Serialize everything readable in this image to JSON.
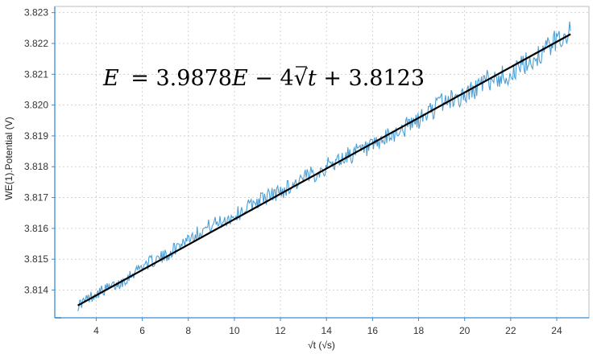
{
  "chart_data": {
    "type": "line",
    "xlabel": "√t (√s)",
    "ylabel": "WE(1).Potential (V)",
    "xlim": [
      2.2,
      25.4
    ],
    "ylim": [
      3.8131,
      3.8232
    ],
    "x_ticks": [
      4,
      6,
      8,
      10,
      12,
      14,
      16,
      18,
      20,
      22,
      24
    ],
    "x_tick_labels": [
      "4",
      "6",
      "8",
      "10",
      "12",
      "14",
      "16",
      "18",
      "20",
      "22",
      "24"
    ],
    "y_ticks": [
      3.814,
      3.815,
      3.816,
      3.817,
      3.818,
      3.819,
      3.82,
      3.821,
      3.822,
      3.823
    ],
    "y_tick_labels": [
      "3.814",
      "3.815",
      "3.816",
      "3.817",
      "3.818",
      "3.819",
      "3.820",
      "3.821",
      "3.822",
      "3.823"
    ],
    "grid": true,
    "annotation": {
      "E": "E",
      "eq1": " = 3.9878",
      "E2": "E",
      "mid": " − 4",
      "sqrt": "√",
      "t": "t",
      "tail": " + 3.8123"
    },
    "series": [
      {
        "role": "measured",
        "color": "#4c9fd6",
        "x": [
          3.2,
          4.0,
          5.0,
          6.0,
          7.0,
          8.0,
          9.0,
          10.0,
          11.0,
          12.0,
          13.0,
          14.0,
          15.0,
          16.0,
          17.0,
          18.0,
          19.0,
          20.0,
          21.0,
          22.0,
          23.0,
          24.0,
          24.6
        ],
        "y": [
          3.8135,
          3.8139,
          3.8142,
          3.8148,
          3.8151,
          3.8157,
          3.8161,
          3.8164,
          3.8169,
          3.8172,
          3.8176,
          3.818,
          3.8184,
          3.8186,
          3.8191,
          3.8195,
          3.8201,
          3.8203,
          3.8208,
          3.821,
          3.8215,
          3.8221,
          3.8224
        ]
      },
      {
        "role": "fit",
        "color": "#000000",
        "x": [
          3.2,
          24.6
        ],
        "y": [
          3.8135,
          3.8223
        ]
      }
    ]
  }
}
